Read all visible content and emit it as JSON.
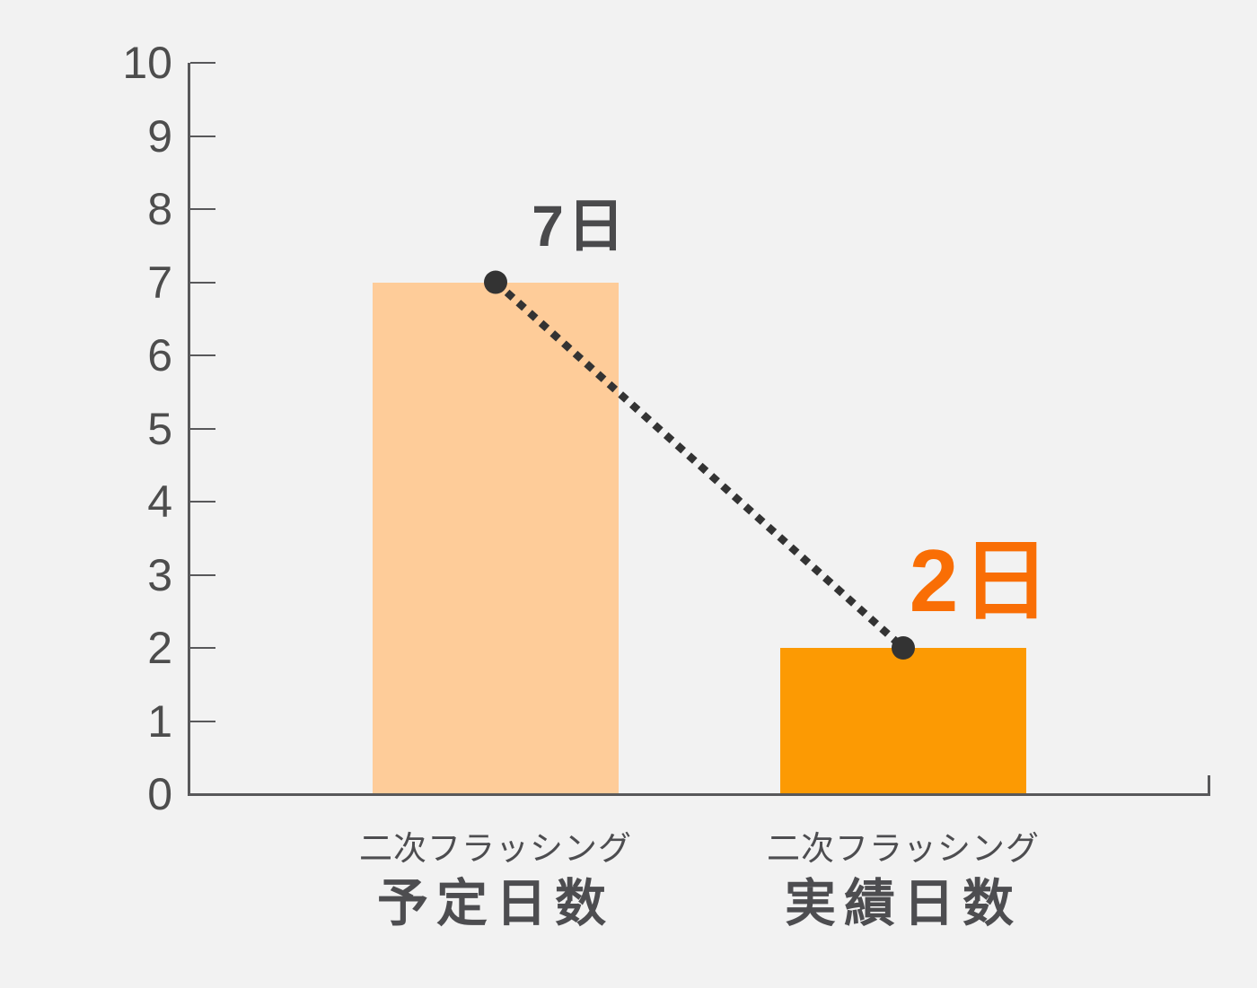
{
  "chart_data": {
    "type": "bar",
    "title": "",
    "xlabel": "",
    "ylabel": "",
    "ylim": [
      0,
      10
    ],
    "y_ticks": [
      "0",
      "1",
      "2",
      "3",
      "4",
      "5",
      "6",
      "7",
      "8",
      "9",
      "10"
    ],
    "grid": false,
    "legend": false,
    "categories": [
      {
        "line1": "二次フラッシング",
        "line2": "予定日数"
      },
      {
        "line1": "二次フラッシング",
        "line2": "実績日数"
      }
    ],
    "values": [
      7,
      2
    ],
    "value_labels": [
      "7日",
      "2日"
    ],
    "unit": "日",
    "connector": {
      "style": "dotted",
      "from_value": 7,
      "to_value": 2,
      "endpoints": "dot"
    },
    "colors": {
      "background": "#F2F2F2",
      "axis": "#58585A",
      "tick_label": "#4D4D4D",
      "bars": [
        "#FECC99",
        "#FC9A03"
      ],
      "value_label_colors": [
        "#4A4A4C",
        "#F96E05"
      ],
      "category_label": "#4D4D50",
      "connector": "#333333"
    }
  }
}
